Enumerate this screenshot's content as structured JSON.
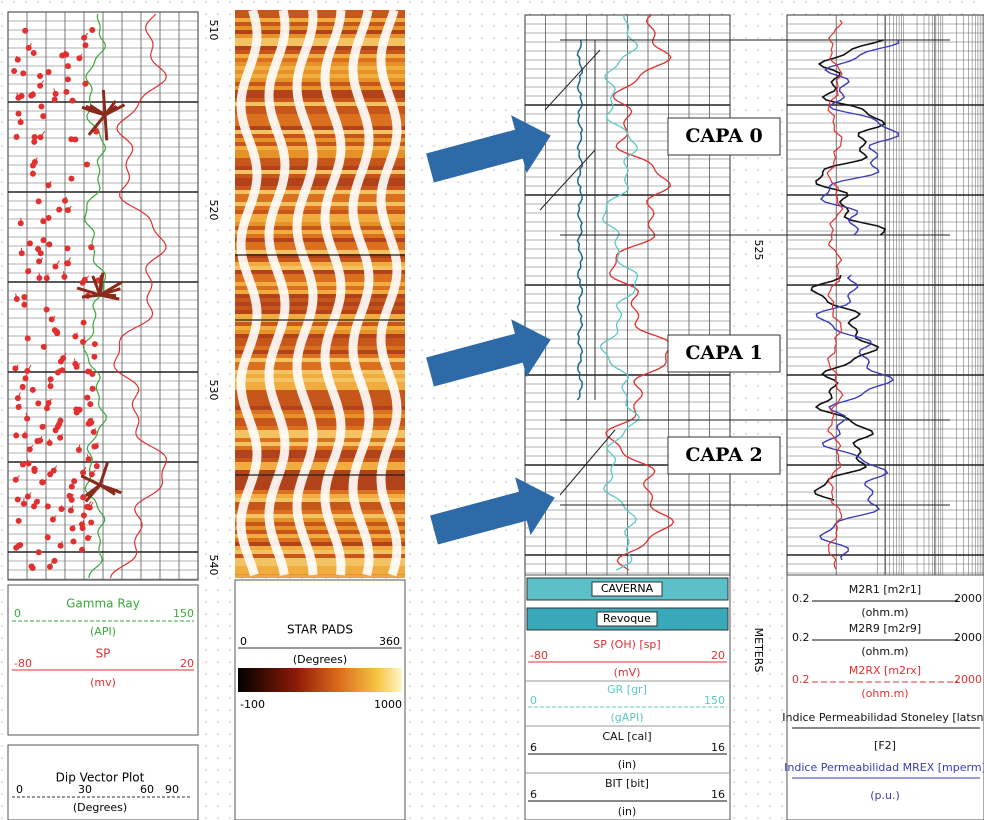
{
  "depth_labels": [
    "510",
    "520",
    "530",
    "540"
  ],
  "depth_label_mid": "525",
  "depth_unit": "METERS",
  "annotations": [
    "CAPA 0",
    "CAPA 1",
    "CAPA 2"
  ],
  "track1_header": {
    "curves": [
      {
        "name": "Gamma Ray",
        "min": "0",
        "max": "150",
        "unit": "(API)",
        "color": "#3aa83a"
      },
      {
        "name": "SP",
        "min": "-80",
        "max": "20",
        "unit": "(mv)",
        "color": "#e03030"
      }
    ],
    "dip": {
      "name": "Dip Vector Plot",
      "ticks": [
        "0",
        "30",
        "60",
        "90"
      ],
      "unit": "(Degrees)"
    }
  },
  "track2_header": {
    "name": "STAR PADS",
    "min": "0",
    "max": "360",
    "unit": "(Degrees)",
    "scale_min": "-100",
    "scale_max": "1000"
  },
  "track3_header": {
    "fills": [
      "CAVERNA",
      "Revoque"
    ],
    "curves": [
      {
        "name": "SP (OH) [sp]",
        "min": "-80",
        "max": "20",
        "unit": "(mV)",
        "color": "#e03030"
      },
      {
        "name": "GR [gr]",
        "min": "0",
        "max": "150",
        "unit": "(gAPI)",
        "color": "#5cc8c8"
      },
      {
        "name": "CAL [cal]",
        "min": "6",
        "max": "16",
        "unit": "(in)",
        "color": "#111111"
      },
      {
        "name": "BIT [bit]",
        "min": "6",
        "max": "16",
        "unit": "(in)",
        "color": "#111111"
      }
    ]
  },
  "track4_header": {
    "curves": [
      {
        "name": "M2R1 [m2r1]",
        "min": "0.2",
        "max": "2000",
        "unit": "(ohm.m)",
        "color": "#111111"
      },
      {
        "name": "M2R9 [m2r9]",
        "min": "0.2",
        "max": "2000",
        "unit": "(ohm.m)",
        "color": "#111111"
      },
      {
        "name": "M2RX [m2rx]",
        "min": "0.2",
        "max": "2000",
        "unit": "(ohm.m)",
        "color": "#e03030"
      }
    ],
    "perm": [
      {
        "name": "Indice Permeabilidad Stoneley [latsn]",
        "unit": "[F2]",
        "color": "#111111"
      },
      {
        "name": "Indice Permeabilidad MREX [mperm]",
        "unit": "(p.u.)",
        "color": "#3a3ab8"
      }
    ]
  }
}
